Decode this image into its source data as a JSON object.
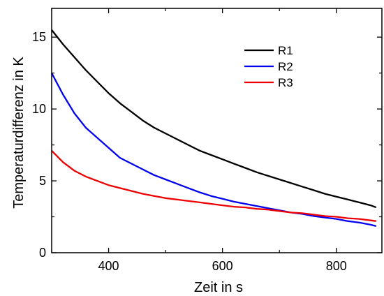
{
  "chart_data": {
    "type": "line",
    "xlabel": "Zeit in s",
    "ylabel": "Temperaturdifferenz in K",
    "xlim": [
      300,
      880
    ],
    "ylim": [
      0,
      17
    ],
    "x_ticks": [
      400,
      600,
      800
    ],
    "y_ticks": [
      0,
      5,
      10,
      15
    ],
    "grid": false,
    "legend_position": "top-right",
    "series": [
      {
        "name": "R1",
        "color": "#000000",
        "x": [
          300,
          320,
          340,
          360,
          380,
          400,
          420,
          440,
          460,
          480,
          500,
          520,
          540,
          560,
          580,
          600,
          620,
          640,
          660,
          680,
          700,
          720,
          740,
          760,
          780,
          800,
          820,
          840,
          860,
          870
        ],
        "y": [
          15.5,
          14.5,
          13.6,
          12.7,
          11.9,
          11.1,
          10.4,
          9.8,
          9.2,
          8.7,
          8.3,
          7.9,
          7.5,
          7.1,
          6.8,
          6.5,
          6.2,
          5.9,
          5.6,
          5.35,
          5.1,
          4.85,
          4.6,
          4.35,
          4.1,
          3.9,
          3.7,
          3.5,
          3.3,
          3.15
        ]
      },
      {
        "name": "R2",
        "color": "#0000ee",
        "x": [
          300,
          320,
          340,
          360,
          380,
          400,
          420,
          440,
          460,
          480,
          500,
          520,
          540,
          560,
          580,
          600,
          620,
          640,
          660,
          680,
          700,
          720,
          740,
          760,
          780,
          800,
          820,
          840,
          860,
          870
        ],
        "y": [
          12.5,
          11.0,
          9.7,
          8.7,
          8.0,
          7.3,
          6.6,
          6.2,
          5.8,
          5.4,
          5.1,
          4.8,
          4.5,
          4.2,
          3.95,
          3.75,
          3.55,
          3.4,
          3.25,
          3.1,
          2.95,
          2.8,
          2.7,
          2.55,
          2.45,
          2.35,
          2.2,
          2.1,
          1.95,
          1.85
        ]
      },
      {
        "name": "R3",
        "color": "#ee0000",
        "x": [
          300,
          320,
          340,
          360,
          380,
          400,
          420,
          440,
          460,
          480,
          500,
          520,
          540,
          560,
          580,
          600,
          620,
          640,
          660,
          680,
          700,
          720,
          740,
          760,
          780,
          800,
          820,
          840,
          860,
          870
        ],
        "y": [
          7.1,
          6.3,
          5.7,
          5.3,
          5.0,
          4.7,
          4.5,
          4.3,
          4.1,
          3.95,
          3.8,
          3.7,
          3.6,
          3.5,
          3.4,
          3.3,
          3.2,
          3.15,
          3.05,
          3.0,
          2.9,
          2.8,
          2.75,
          2.65,
          2.55,
          2.5,
          2.4,
          2.35,
          2.25,
          2.2
        ]
      }
    ]
  }
}
